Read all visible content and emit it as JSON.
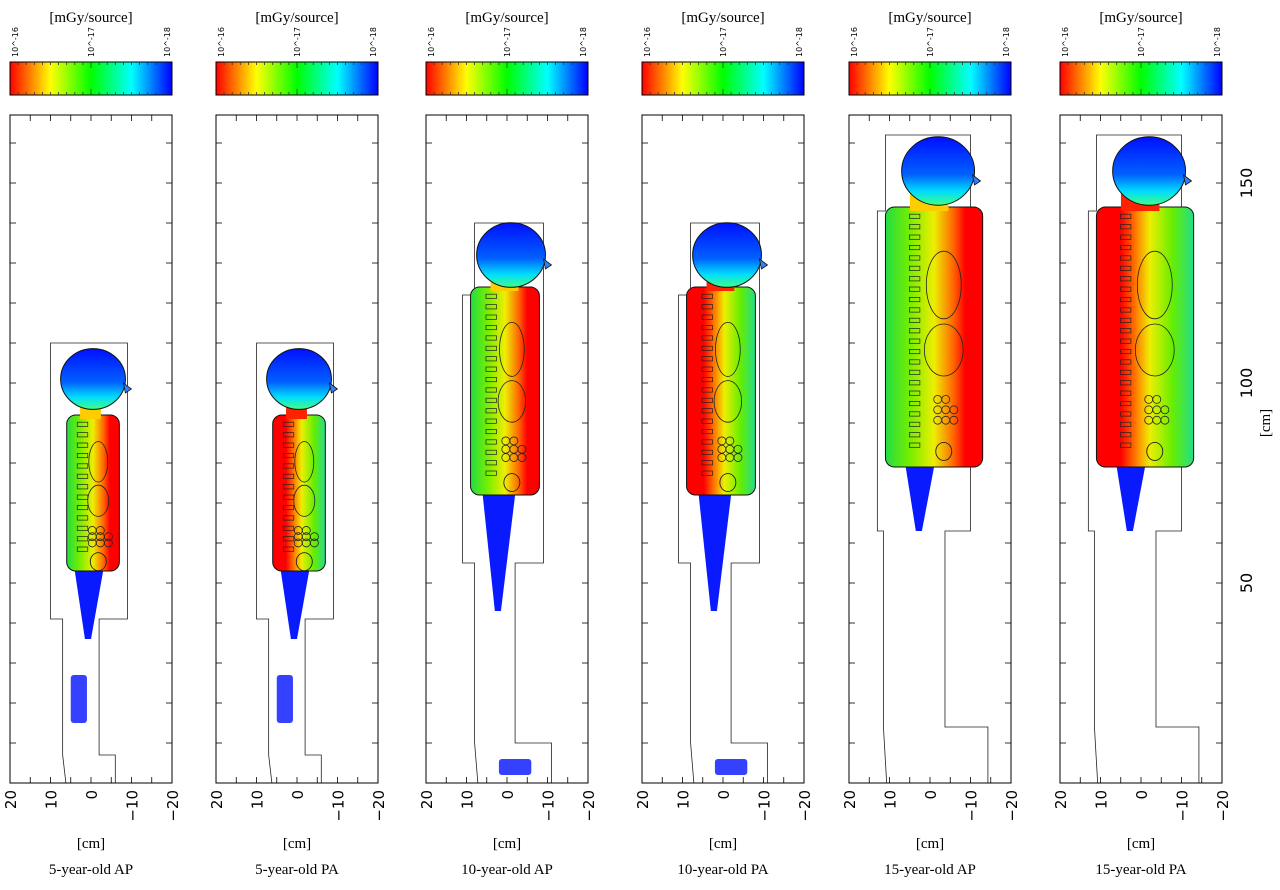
{
  "chart_data": {
    "type": "heatmap",
    "colorbar": {
      "label": "[mGy/source]",
      "tick_labels": [
        "10^-16",
        "10^-17",
        "10^-18"
      ],
      "scale": "log",
      "range": [
        1e-16,
        1e-18
      ],
      "colors": [
        "#ff0000",
        "#ffff00",
        "#00ff00",
        "#00ffff",
        "#0000ff"
      ]
    },
    "x_axis": {
      "label": "[cm]",
      "ticks": [
        20,
        10,
        0,
        -10,
        -20
      ],
      "tick_labels": [
        "20",
        "10",
        "0",
        "−10",
        "−20"
      ],
      "xlim": [
        20,
        -20
      ]
    },
    "y_axis": {
      "label": "[cm]",
      "ticks": [
        50,
        100,
        150
      ],
      "tick_labels": [
        "50",
        "100",
        "150"
      ],
      "ylim": [
        0,
        167
      ],
      "minor_step": 10
    },
    "panels": [
      {
        "title": "5-year-old AP",
        "age": 5,
        "beam": "AP"
      },
      {
        "title": "5-year-old PA",
        "age": 5,
        "beam": "PA"
      },
      {
        "title": "10-year-old AP",
        "age": 10,
        "beam": "AP"
      },
      {
        "title": "10-year-old PA",
        "age": 10,
        "beam": "PA"
      },
      {
        "title": "15-year-old AP",
        "age": 15,
        "beam": "AP"
      },
      {
        "title": "15-year-old PA",
        "age": 15,
        "beam": "PA"
      }
    ]
  }
}
